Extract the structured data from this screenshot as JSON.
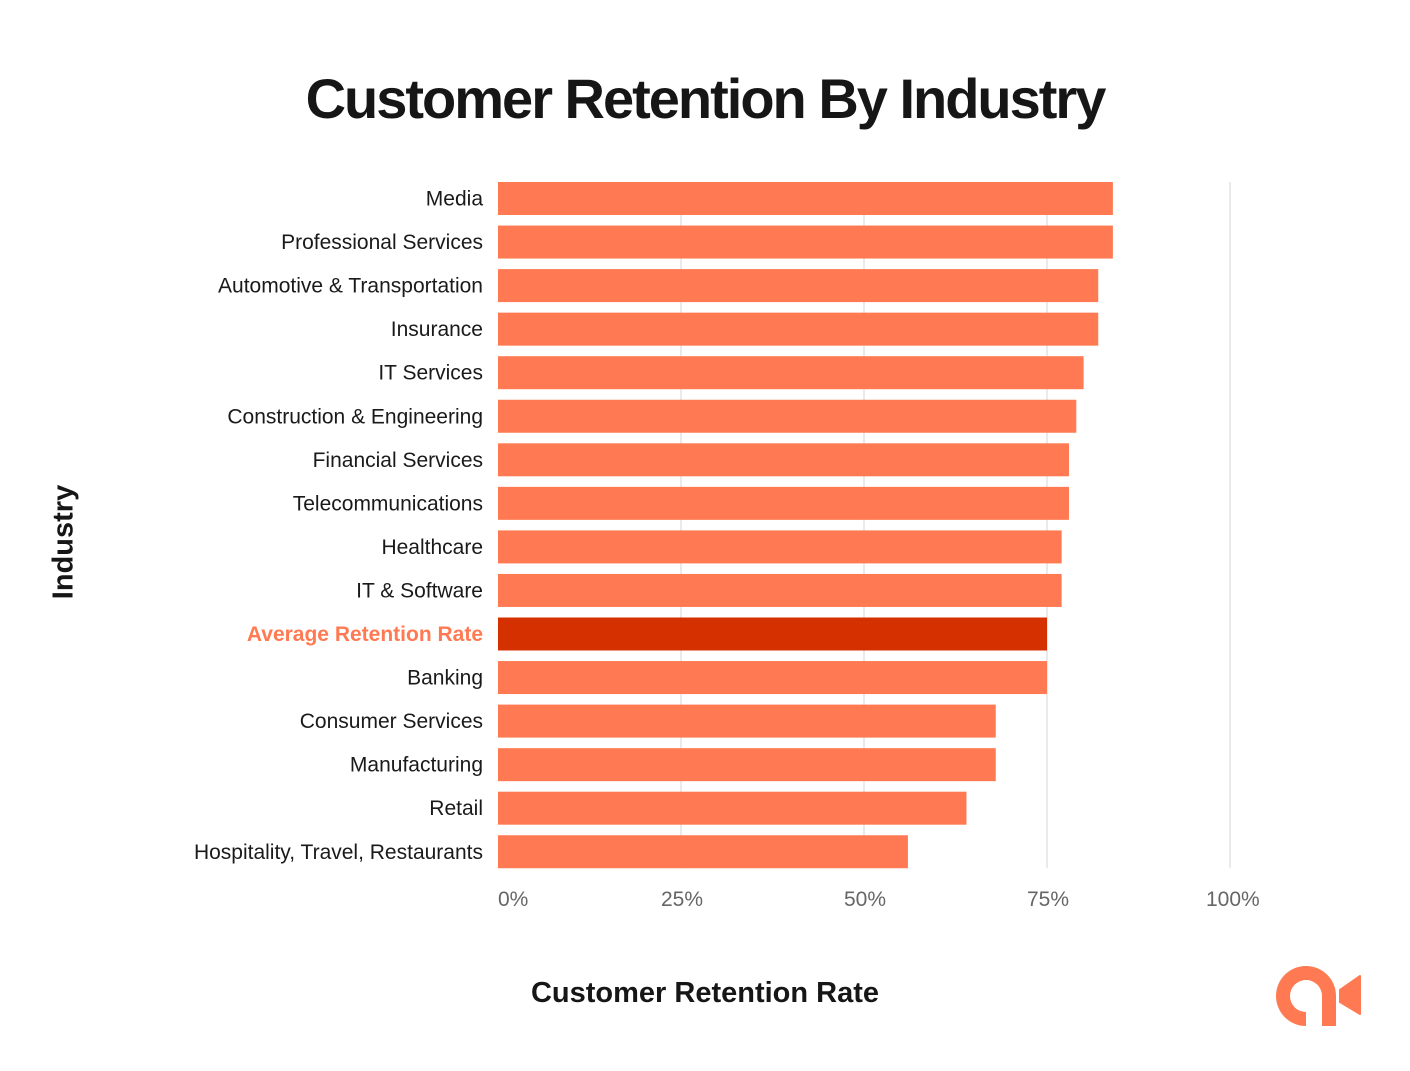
{
  "chart_data": {
    "type": "bar",
    "orientation": "horizontal",
    "title": "Customer Retention By Industry",
    "xlabel": "Customer Retention Rate",
    "ylabel": "Industry",
    "xlim": [
      0,
      100
    ],
    "xticks": [
      0,
      25,
      50,
      75,
      100
    ],
    "xtick_labels": [
      "0%",
      "25%",
      "50%",
      "75%",
      "100%"
    ],
    "grid": "vertical",
    "categories": [
      "Media",
      "Professional Services",
      "Automotive & Transportation",
      "Insurance",
      "IT Services",
      "Construction & Engineering",
      "Financial Services",
      "Telecommunications",
      "Healthcare",
      "IT & Software",
      "Average Retention Rate",
      "Banking",
      "Consumer Services",
      "Manufacturing",
      "Retail",
      "Hospitality, Travel, Restaurants"
    ],
    "values": [
      84,
      84,
      82,
      82,
      80,
      79,
      78,
      78,
      77,
      77,
      75,
      75,
      68,
      68,
      64,
      56
    ],
    "highlight": "Average Retention Rate",
    "colors": {
      "bar": "#ff7a52",
      "highlight_bar": "#d43000",
      "highlight_label": "#ff7a52",
      "grid": "#e3e3e3"
    }
  },
  "logo": {
    "name": "brand-logo",
    "color": "#ff7a52"
  }
}
